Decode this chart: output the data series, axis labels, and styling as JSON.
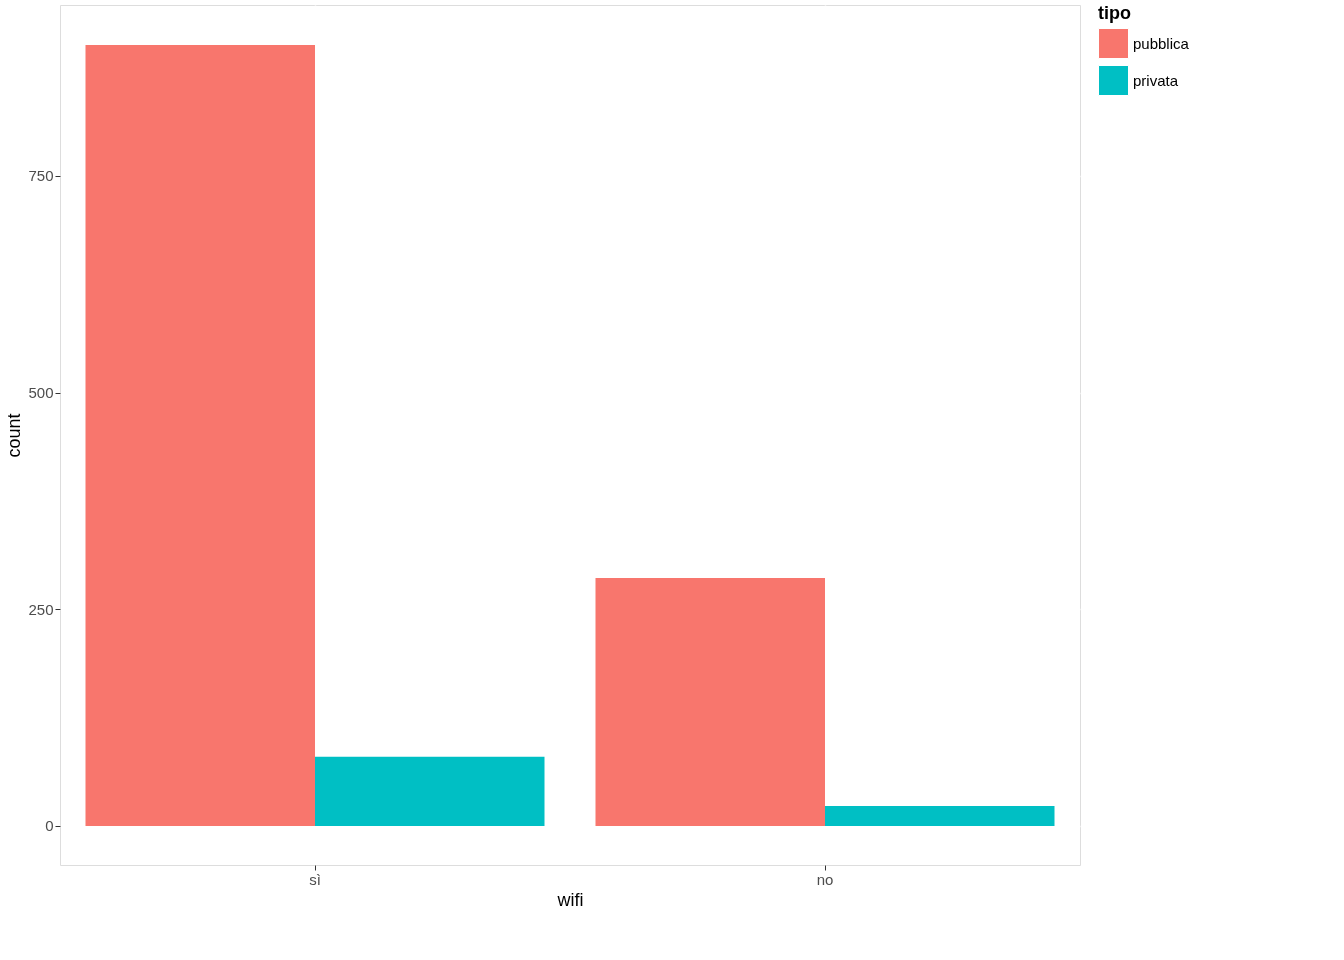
{
  "chart_data": {
    "type": "bar",
    "xlabel": "wifi",
    "ylabel": "count",
    "legend_title": "tipo",
    "categories": [
      "sì",
      "no"
    ],
    "series": [
      {
        "name": "pubblica",
        "color": "#f8766d",
        "values": [
          901,
          286
        ]
      },
      {
        "name": "privata",
        "color": "#00bfc4",
        "values": [
          80,
          23
        ]
      }
    ],
    "ylim": [
      -45,
      947
    ],
    "yticks": [
      0,
      250,
      500,
      750
    ],
    "grid": true,
    "legend": "right"
  }
}
